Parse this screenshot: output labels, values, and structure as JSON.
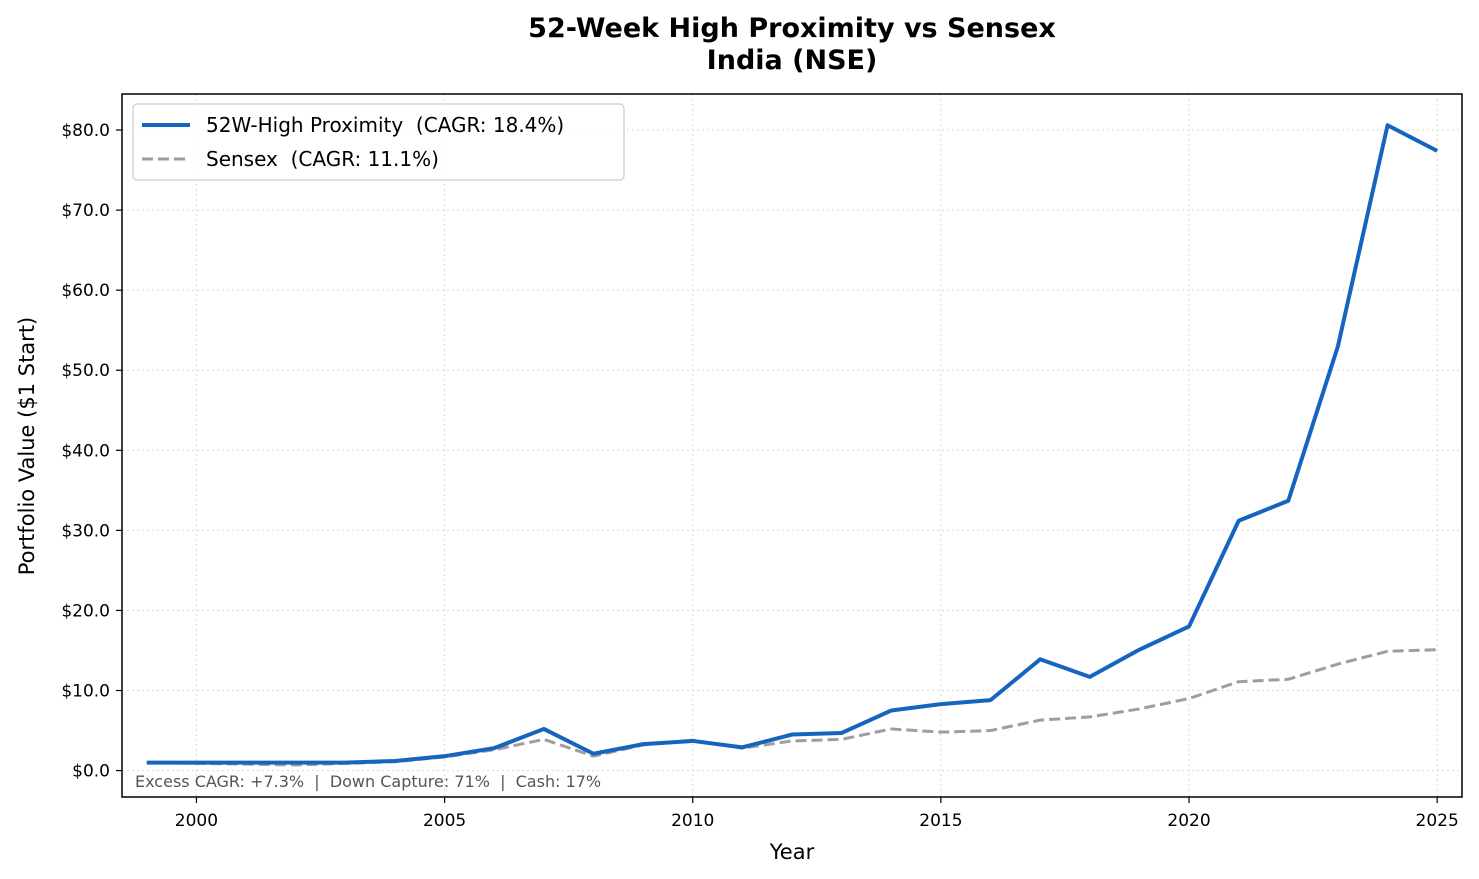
{
  "chart_data": {
    "type": "line",
    "title": "52-Week High Proximity vs Sensex",
    "subtitle": "India (NSE)",
    "xlabel": "Year",
    "ylabel": "Portfolio Value ($1 Start)",
    "xlim": [
      1998.5,
      2025.5
    ],
    "ylim": [
      -3.3,
      84.5
    ],
    "xticks": [
      2000,
      2005,
      2010,
      2015,
      2020,
      2025
    ],
    "xtick_labels": [
      "2000",
      "2005",
      "2010",
      "2015",
      "2020",
      "2025"
    ],
    "yticks": [
      0,
      10,
      20,
      30,
      40,
      50,
      60,
      70,
      80
    ],
    "ytick_labels": [
      "$0.0",
      "$10.0",
      "$20.0",
      "$30.0",
      "$40.0",
      "$50.0",
      "$60.0",
      "$70.0",
      "$80.0"
    ],
    "grid": true,
    "legend_position": "top-left",
    "x": [
      1999,
      2000,
      2001,
      2002,
      2003,
      2004,
      2005,
      2006,
      2007,
      2008,
      2009,
      2010,
      2011,
      2012,
      2013,
      2014,
      2015,
      2016,
      2017,
      2018,
      2019,
      2020,
      2021,
      2022,
      2023,
      2024,
      2025
    ],
    "series": [
      {
        "name": "52W-High Proximity  (CAGR: 18.4%)",
        "color": "#1565C0",
        "style": "solid",
        "values": [
          1.0,
          1.0,
          1.0,
          1.0,
          1.0,
          1.2,
          1.8,
          2.8,
          5.2,
          2.1,
          3.3,
          3.7,
          2.9,
          4.5,
          4.7,
          7.5,
          8.3,
          8.8,
          13.9,
          11.7,
          15.1,
          18.0,
          31.2,
          33.7,
          53.0,
          80.6,
          77.4
        ]
      },
      {
        "name": "Sensex  (CAGR: 11.1%)",
        "color": "#9E9E9E",
        "style": "dashed",
        "values": [
          1.0,
          0.9,
          0.8,
          0.7,
          0.9,
          1.1,
          1.7,
          2.6,
          3.9,
          1.8,
          3.2,
          3.8,
          2.8,
          3.7,
          3.9,
          5.2,
          4.8,
          5.0,
          6.3,
          6.7,
          7.7,
          9.0,
          11.1,
          11.4,
          13.3,
          14.9,
          15.1
        ]
      }
    ],
    "annotation": "Excess CAGR: +7.3%  |  Down Capture: 71%  |  Cash: 17%"
  }
}
